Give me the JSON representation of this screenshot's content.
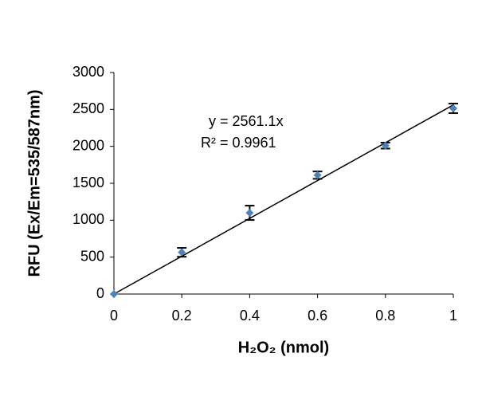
{
  "chart_data": {
    "type": "scatter",
    "x": [
      0,
      0.2,
      0.4,
      0.6,
      0.8,
      1
    ],
    "series": [
      {
        "name": "RFU",
        "color": "#4f81bd",
        "values": [
          0,
          565,
          1100,
          1610,
          2010,
          2515
        ],
        "errors": [
          0,
          60,
          97,
          50,
          40,
          65
        ]
      }
    ],
    "trendline": {
      "slope": 2561.1,
      "color": "#000000",
      "equation": "y = 2561.1x",
      "r_squared": "R² = 0.9961"
    },
    "x_label": "H₂O₂ (nmol)",
    "y_label": "RFU (Ex/Em=535/587nm)",
    "xlim": [
      0,
      1
    ],
    "xticks": [
      0,
      0.2,
      0.4,
      0.6,
      0.8,
      1
    ],
    "ylim": [
      0,
      3000
    ],
    "yticks": [
      0,
      500,
      1000,
      1500,
      2000,
      2500,
      3000
    ],
    "grid": false
  }
}
